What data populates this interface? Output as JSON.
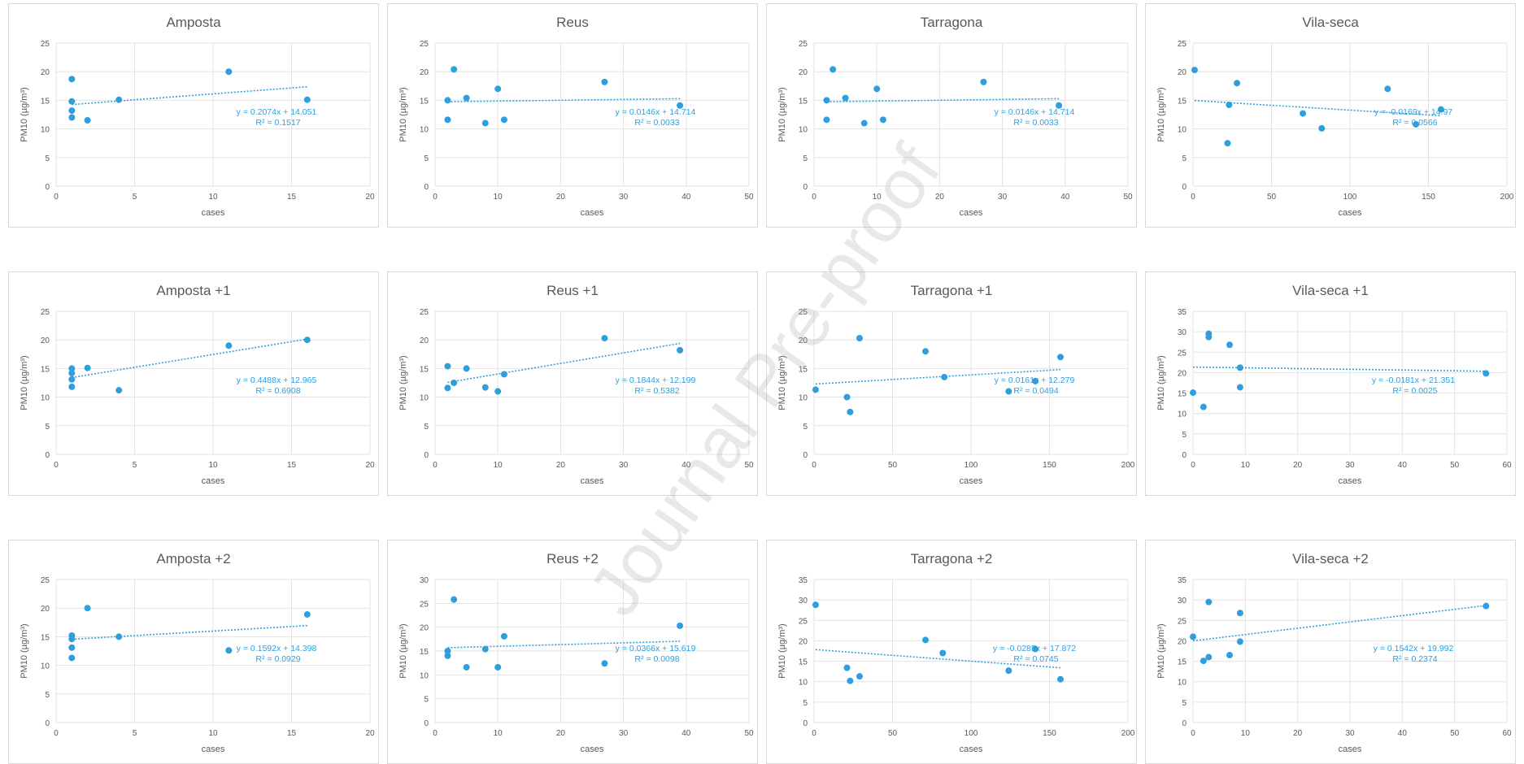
{
  "accent": "#2e9fdc",
  "watermark": "Journal Pre-proof",
  "chart_data": [
    {
      "type": "scatter",
      "title": "Amposta",
      "xlabel": "cases",
      "ylabel": "PM10 (µg/m³)",
      "xlim": [
        0,
        20
      ],
      "xticks": [
        0,
        5,
        10,
        15,
        20
      ],
      "ylim": [
        0,
        25
      ],
      "yticks": [
        0,
        5,
        10,
        15,
        20,
        25
      ],
      "points": [
        [
          1,
          18.7
        ],
        [
          1,
          14.8
        ],
        [
          1,
          13.2
        ],
        [
          1,
          12
        ],
        [
          2,
          11.5
        ],
        [
          4,
          15.1
        ],
        [
          11,
          20
        ],
        [
          16,
          15.1
        ]
      ],
      "trend": {
        "slope": 0.2074,
        "intercept": 14.051
      },
      "equation": "y = 0.2074x + 14.051",
      "r2": "R² = 0.1517"
    },
    {
      "type": "scatter",
      "title": "Reus",
      "xlabel": "cases",
      "ylabel": "PM10 (µg/m³)",
      "xlim": [
        0,
        50
      ],
      "xticks": [
        0,
        10,
        20,
        30,
        40,
        50
      ],
      "ylim": [
        0,
        25
      ],
      "yticks": [
        0,
        5,
        10,
        15,
        20,
        25
      ],
      "points": [
        [
          2,
          15
        ],
        [
          2,
          11.6
        ],
        [
          3,
          20.4
        ],
        [
          5,
          15.4
        ],
        [
          8,
          11
        ],
        [
          10,
          17
        ],
        [
          11,
          11.6
        ],
        [
          27,
          18.2
        ],
        [
          39,
          14.1
        ]
      ],
      "trend": {
        "slope": 0.0146,
        "intercept": 14.714
      },
      "equation": "y = 0.0146x + 14.714",
      "r2": "R² = 0.0033"
    },
    {
      "type": "scatter",
      "title": "Tarragona",
      "xlabel": "cases",
      "ylabel": "PM10 (µg/m³)",
      "xlim": [
        0,
        50
      ],
      "xticks": [
        0,
        10,
        20,
        30,
        40,
        50
      ],
      "ylim": [
        0,
        25
      ],
      "yticks": [
        0,
        5,
        10,
        15,
        20,
        25
      ],
      "points": [
        [
          2,
          15
        ],
        [
          2,
          11.6
        ],
        [
          3,
          20.4
        ],
        [
          5,
          15.4
        ],
        [
          8,
          11
        ],
        [
          10,
          17
        ],
        [
          11,
          11.6
        ],
        [
          27,
          18.2
        ],
        [
          39,
          14.1
        ]
      ],
      "trend": {
        "slope": 0.0146,
        "intercept": 14.714
      },
      "equation": "y = 0.0146x + 14.714",
      "r2": "R² = 0.0033"
    },
    {
      "type": "scatter",
      "title": "Vila-seca",
      "xlabel": "cases",
      "ylabel": "PM10 (µg/m³)",
      "xlim": [
        0,
        200
      ],
      "xticks": [
        0,
        50,
        100,
        150,
        200
      ],
      "ylim": [
        0,
        25
      ],
      "yticks": [
        0,
        5,
        10,
        15,
        20,
        25
      ],
      "points": [
        [
          1,
          20.3
        ],
        [
          22,
          7.5
        ],
        [
          23,
          14.2
        ],
        [
          28,
          18
        ],
        [
          70,
          12.7
        ],
        [
          82,
          10.1
        ],
        [
          124,
          17
        ],
        [
          142,
          10.8
        ],
        [
          158,
          13.4
        ]
      ],
      "trend": {
        "slope": -0.0169,
        "intercept": 14.97
      },
      "equation": "y = -0.0169x + 14.97",
      "r2": "R² = 0.0566"
    },
    {
      "type": "scatter",
      "title": "Amposta +1",
      "xlabel": "cases",
      "ylabel": "PM10 (µg/m³)",
      "xlim": [
        0,
        20
      ],
      "xticks": [
        0,
        5,
        10,
        15,
        20
      ],
      "ylim": [
        0,
        25
      ],
      "yticks": [
        0,
        5,
        10,
        15,
        20,
        25
      ],
      "points": [
        [
          1,
          15
        ],
        [
          1,
          14.2
        ],
        [
          1,
          13.1
        ],
        [
          1,
          11.8
        ],
        [
          2,
          15.1
        ],
        [
          4,
          11.2
        ],
        [
          11,
          19
        ],
        [
          16,
          20
        ]
      ],
      "trend": {
        "slope": 0.4488,
        "intercept": 12.965
      },
      "equation": "y = 0.4488x + 12.965",
      "r2": "R² = 0.6908"
    },
    {
      "type": "scatter",
      "title": "Reus +1",
      "xlabel": "cases",
      "ylabel": "PM10 (µg/m³)",
      "xlim": [
        0,
        50
      ],
      "xticks": [
        0,
        10,
        20,
        30,
        40,
        50
      ],
      "ylim": [
        0,
        25
      ],
      "yticks": [
        0,
        5,
        10,
        15,
        20,
        25
      ],
      "points": [
        [
          2,
          15.4
        ],
        [
          2,
          11.6
        ],
        [
          3,
          12.5
        ],
        [
          5,
          15
        ],
        [
          8,
          11.7
        ],
        [
          10,
          11
        ],
        [
          11,
          14
        ],
        [
          27,
          20.3
        ],
        [
          39,
          18.2
        ]
      ],
      "trend": {
        "slope": 0.1844,
        "intercept": 12.199
      },
      "equation": "y = 0.1844x + 12.199",
      "r2": "R² = 0.5382"
    },
    {
      "type": "scatter",
      "title": "Tarragona +1",
      "xlabel": "cases",
      "ylabel": "PM10 (µg/m³)",
      "xlim": [
        0,
        200
      ],
      "xticks": [
        0,
        50,
        100,
        150,
        200
      ],
      "ylim": [
        0,
        25
      ],
      "yticks": [
        0,
        5,
        10,
        15,
        20,
        25
      ],
      "points": [
        [
          1,
          11.3
        ],
        [
          21,
          10
        ],
        [
          23,
          7.4
        ],
        [
          29,
          20.3
        ],
        [
          71,
          18
        ],
        [
          83,
          13.5
        ],
        [
          124,
          11
        ],
        [
          141,
          12.8
        ],
        [
          157,
          17
        ]
      ],
      "trend": {
        "slope": 0.0161,
        "intercept": 12.279
      },
      "equation": "y = 0.0161x + 12.279",
      "r2": "R² = 0.0494"
    },
    {
      "type": "scatter",
      "title": "Vila-seca +1",
      "xlabel": "cases",
      "ylabel": "PM10 (µg/m³)",
      "xlim": [
        0,
        60
      ],
      "xticks": [
        0,
        10,
        20,
        30,
        40,
        50,
        60
      ],
      "ylim": [
        0,
        35
      ],
      "yticks": [
        0,
        5,
        10,
        15,
        20,
        25,
        30,
        35
      ],
      "points": [
        [
          0,
          15.1
        ],
        [
          2,
          11.6
        ],
        [
          3,
          29.5
        ],
        [
          3,
          28.7
        ],
        [
          7,
          26.8
        ],
        [
          9,
          21.2
        ],
        [
          9,
          16.4
        ],
        [
          56,
          19.8
        ]
      ],
      "trend": {
        "slope": -0.0181,
        "intercept": 21.351
      },
      "equation": "y = -0.0181x + 21.351",
      "r2": "R² = 0.0025"
    },
    {
      "type": "scatter",
      "title": "Amposta +2",
      "xlabel": "cases",
      "ylabel": "PM10 (µg/m³)",
      "xlim": [
        0,
        20
      ],
      "xticks": [
        0,
        5,
        10,
        15,
        20
      ],
      "ylim": [
        0,
        25
      ],
      "yticks": [
        0,
        5,
        10,
        15,
        20,
        25
      ],
      "points": [
        [
          1,
          15.2
        ],
        [
          1,
          14.6
        ],
        [
          1,
          13.1
        ],
        [
          1,
          11.3
        ],
        [
          2,
          20
        ],
        [
          4,
          15
        ],
        [
          11,
          12.6
        ],
        [
          16,
          18.9
        ]
      ],
      "trend": {
        "slope": 0.1592,
        "intercept": 14.398
      },
      "equation": "y = 0.1592x + 14.398",
      "r2": "R² = 0.0929"
    },
    {
      "type": "scatter",
      "title": "Reus +2",
      "xlabel": "cases",
      "ylabel": "PM10 (µg/m³)",
      "xlim": [
        0,
        50
      ],
      "xticks": [
        0,
        10,
        20,
        30,
        40,
        50
      ],
      "ylim": [
        0,
        30
      ],
      "yticks": [
        0,
        5,
        10,
        15,
        20,
        25,
        30
      ],
      "points": [
        [
          2,
          15
        ],
        [
          2,
          14
        ],
        [
          3,
          25.8
        ],
        [
          5,
          11.6
        ],
        [
          8,
          15.4
        ],
        [
          10,
          11.6
        ],
        [
          11,
          18.1
        ],
        [
          27,
          12.4
        ],
        [
          39,
          20.3
        ]
      ],
      "trend": {
        "slope": 0.0366,
        "intercept": 15.619
      },
      "equation": "y = 0.0366x + 15.619",
      "r2": "R² = 0.0098"
    },
    {
      "type": "scatter",
      "title": "Tarragona +2",
      "xlabel": "cases",
      "ylabel": "PM10 (µg/m³)",
      "xlim": [
        0,
        200
      ],
      "xticks": [
        0,
        50,
        100,
        150,
        200
      ],
      "ylim": [
        0,
        35
      ],
      "yticks": [
        0,
        5,
        10,
        15,
        20,
        25,
        30,
        35
      ],
      "points": [
        [
          1,
          28.8
        ],
        [
          21,
          13.4
        ],
        [
          23,
          10.2
        ],
        [
          29,
          11.3
        ],
        [
          71,
          20.2
        ],
        [
          82,
          17
        ],
        [
          124,
          12.7
        ],
        [
          141,
          18
        ],
        [
          157,
          10.6
        ]
      ],
      "trend": {
        "slope": -0.0285,
        "intercept": 17.872
      },
      "equation": "y = -0.0285x + 17.872",
      "r2": "R² = 0.0745"
    },
    {
      "type": "scatter",
      "title": "Vila-seca +2",
      "xlabel": "cases",
      "ylabel": "PM10 (µg/m³)",
      "xlim": [
        0,
        60
      ],
      "xticks": [
        0,
        10,
        20,
        30,
        40,
        50,
        60
      ],
      "ylim": [
        0,
        35
      ],
      "yticks": [
        0,
        5,
        10,
        15,
        20,
        25,
        30,
        35
      ],
      "points": [
        [
          0,
          21
        ],
        [
          2,
          15.1
        ],
        [
          3,
          29.5
        ],
        [
          3,
          16
        ],
        [
          7,
          16.5
        ],
        [
          9,
          26.8
        ],
        [
          9,
          19.8
        ],
        [
          56,
          28.5
        ]
      ],
      "trend": {
        "slope": 0.1542,
        "intercept": 19.992
      },
      "equation": "y = 0.1542x + 19.992",
      "r2": "R² = 0.2374"
    }
  ]
}
